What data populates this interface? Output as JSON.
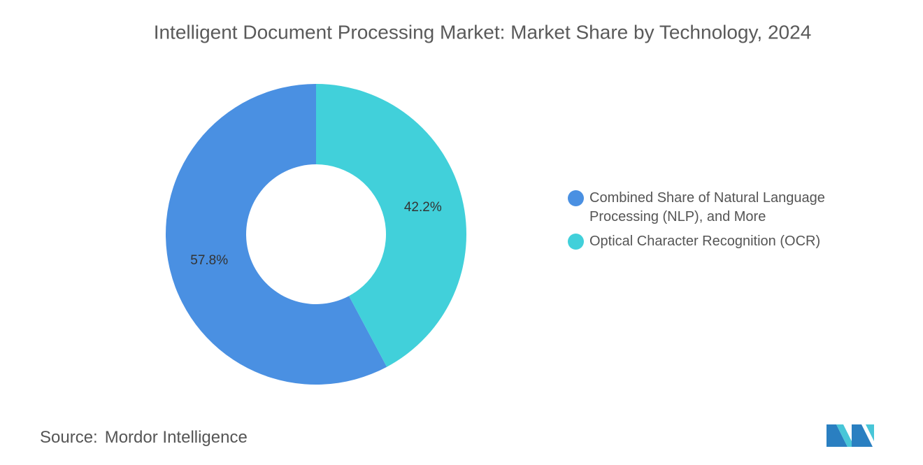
{
  "chart_data": {
    "type": "pie",
    "title": "Intelligent Document Processing Market: Market Share by Technology, 2024",
    "categories": [
      "Combined Share of Natural Language Processing (NLP), and More",
      "Optical Character Recognition (OCR)"
    ],
    "values": [
      57.8,
      42.2
    ],
    "value_labels": [
      "57.8%",
      "42.2%"
    ],
    "colors": [
      "#4a90e2",
      "#41d0da"
    ],
    "legend": "right"
  },
  "source": {
    "label": "Source:",
    "text": "Mordor Intelligence"
  }
}
